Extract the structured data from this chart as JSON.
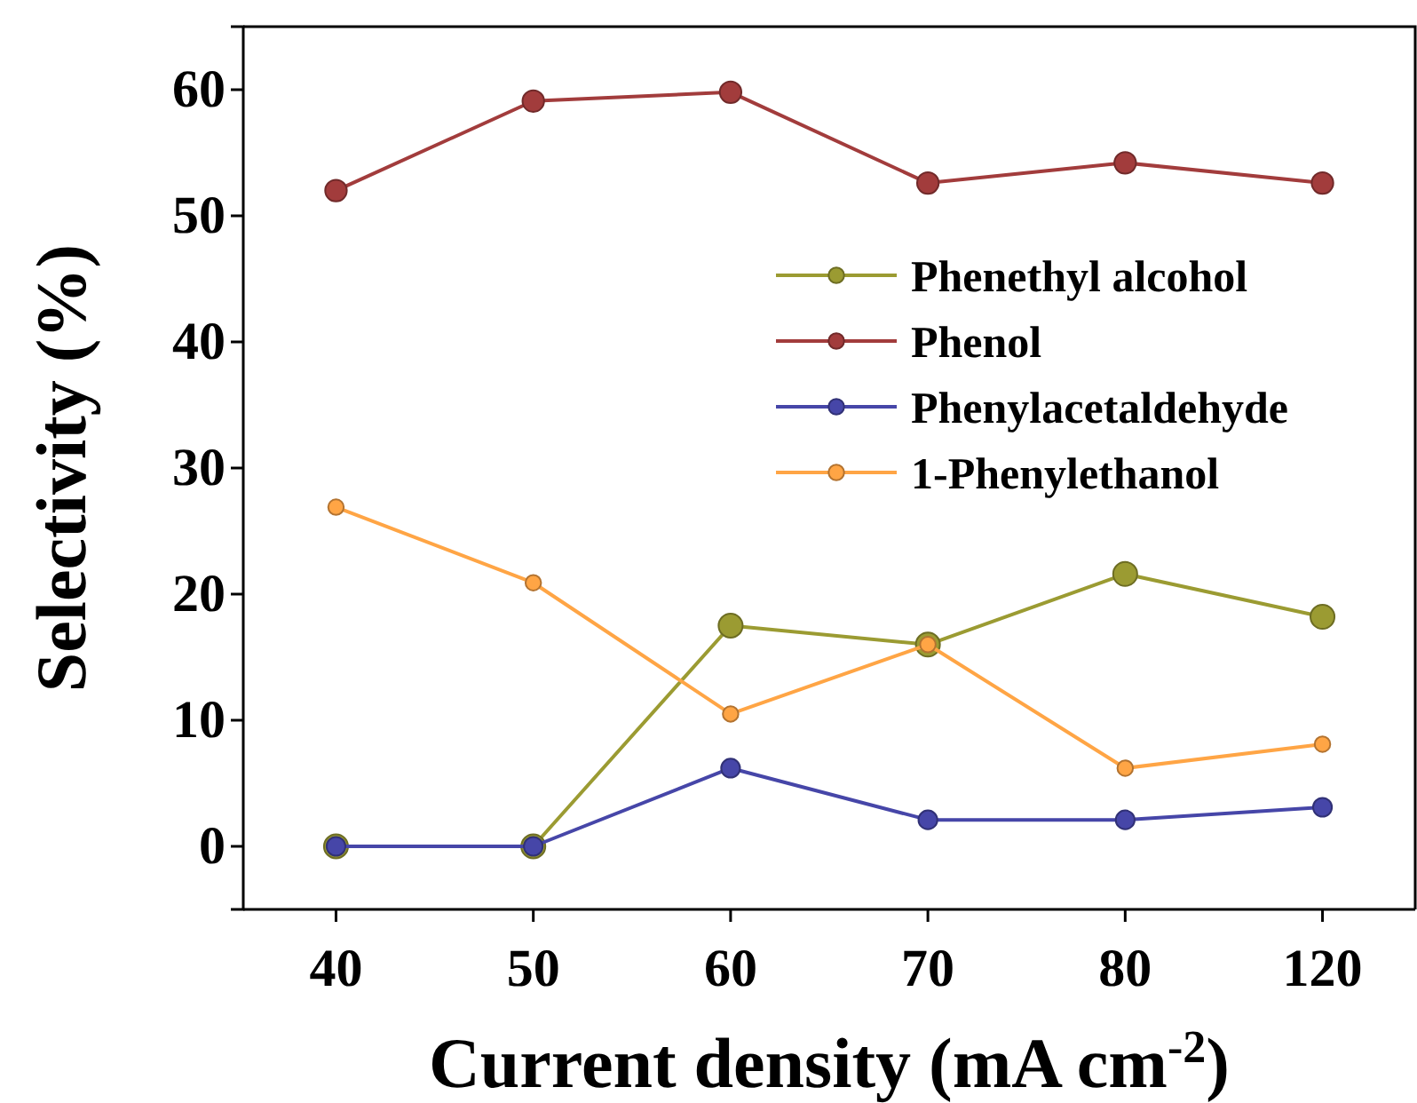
{
  "chart_data": {
    "type": "line",
    "xlabel": "Current density (mA cm$^{-2}$)",
    "ylabel": "Selectivity (%)",
    "categories": [
      "40",
      "50",
      "60",
      "70",
      "80",
      "120"
    ],
    "ylim": [
      -5,
      65
    ],
    "yticks": [
      0,
      10,
      20,
      30,
      40,
      50,
      60
    ],
    "marker": "circle",
    "line_style": "solid",
    "legend": "right",
    "grid": false,
    "series": [
      {
        "name": "Phenethyl alcohol",
        "color": "#9b9b32",
        "values": [
          0,
          0,
          17.5,
          16,
          21.6,
          18.2
        ]
      },
      {
        "name": "Phenol",
        "color": "#a23c3c",
        "values": [
          52,
          59.1,
          59.8,
          52.6,
          54.2,
          52.6
        ]
      },
      {
        "name": "Phenylacetaldehyde",
        "color": "#4646a8",
        "values": [
          0,
          0,
          6.2,
          2.1,
          2.1,
          3.1
        ]
      },
      {
        "name": "1-Phenylethanol",
        "color": "#ffa545",
        "values": [
          26.9,
          20.9,
          10.5,
          16,
          6.2,
          8.1
        ]
      }
    ]
  }
}
